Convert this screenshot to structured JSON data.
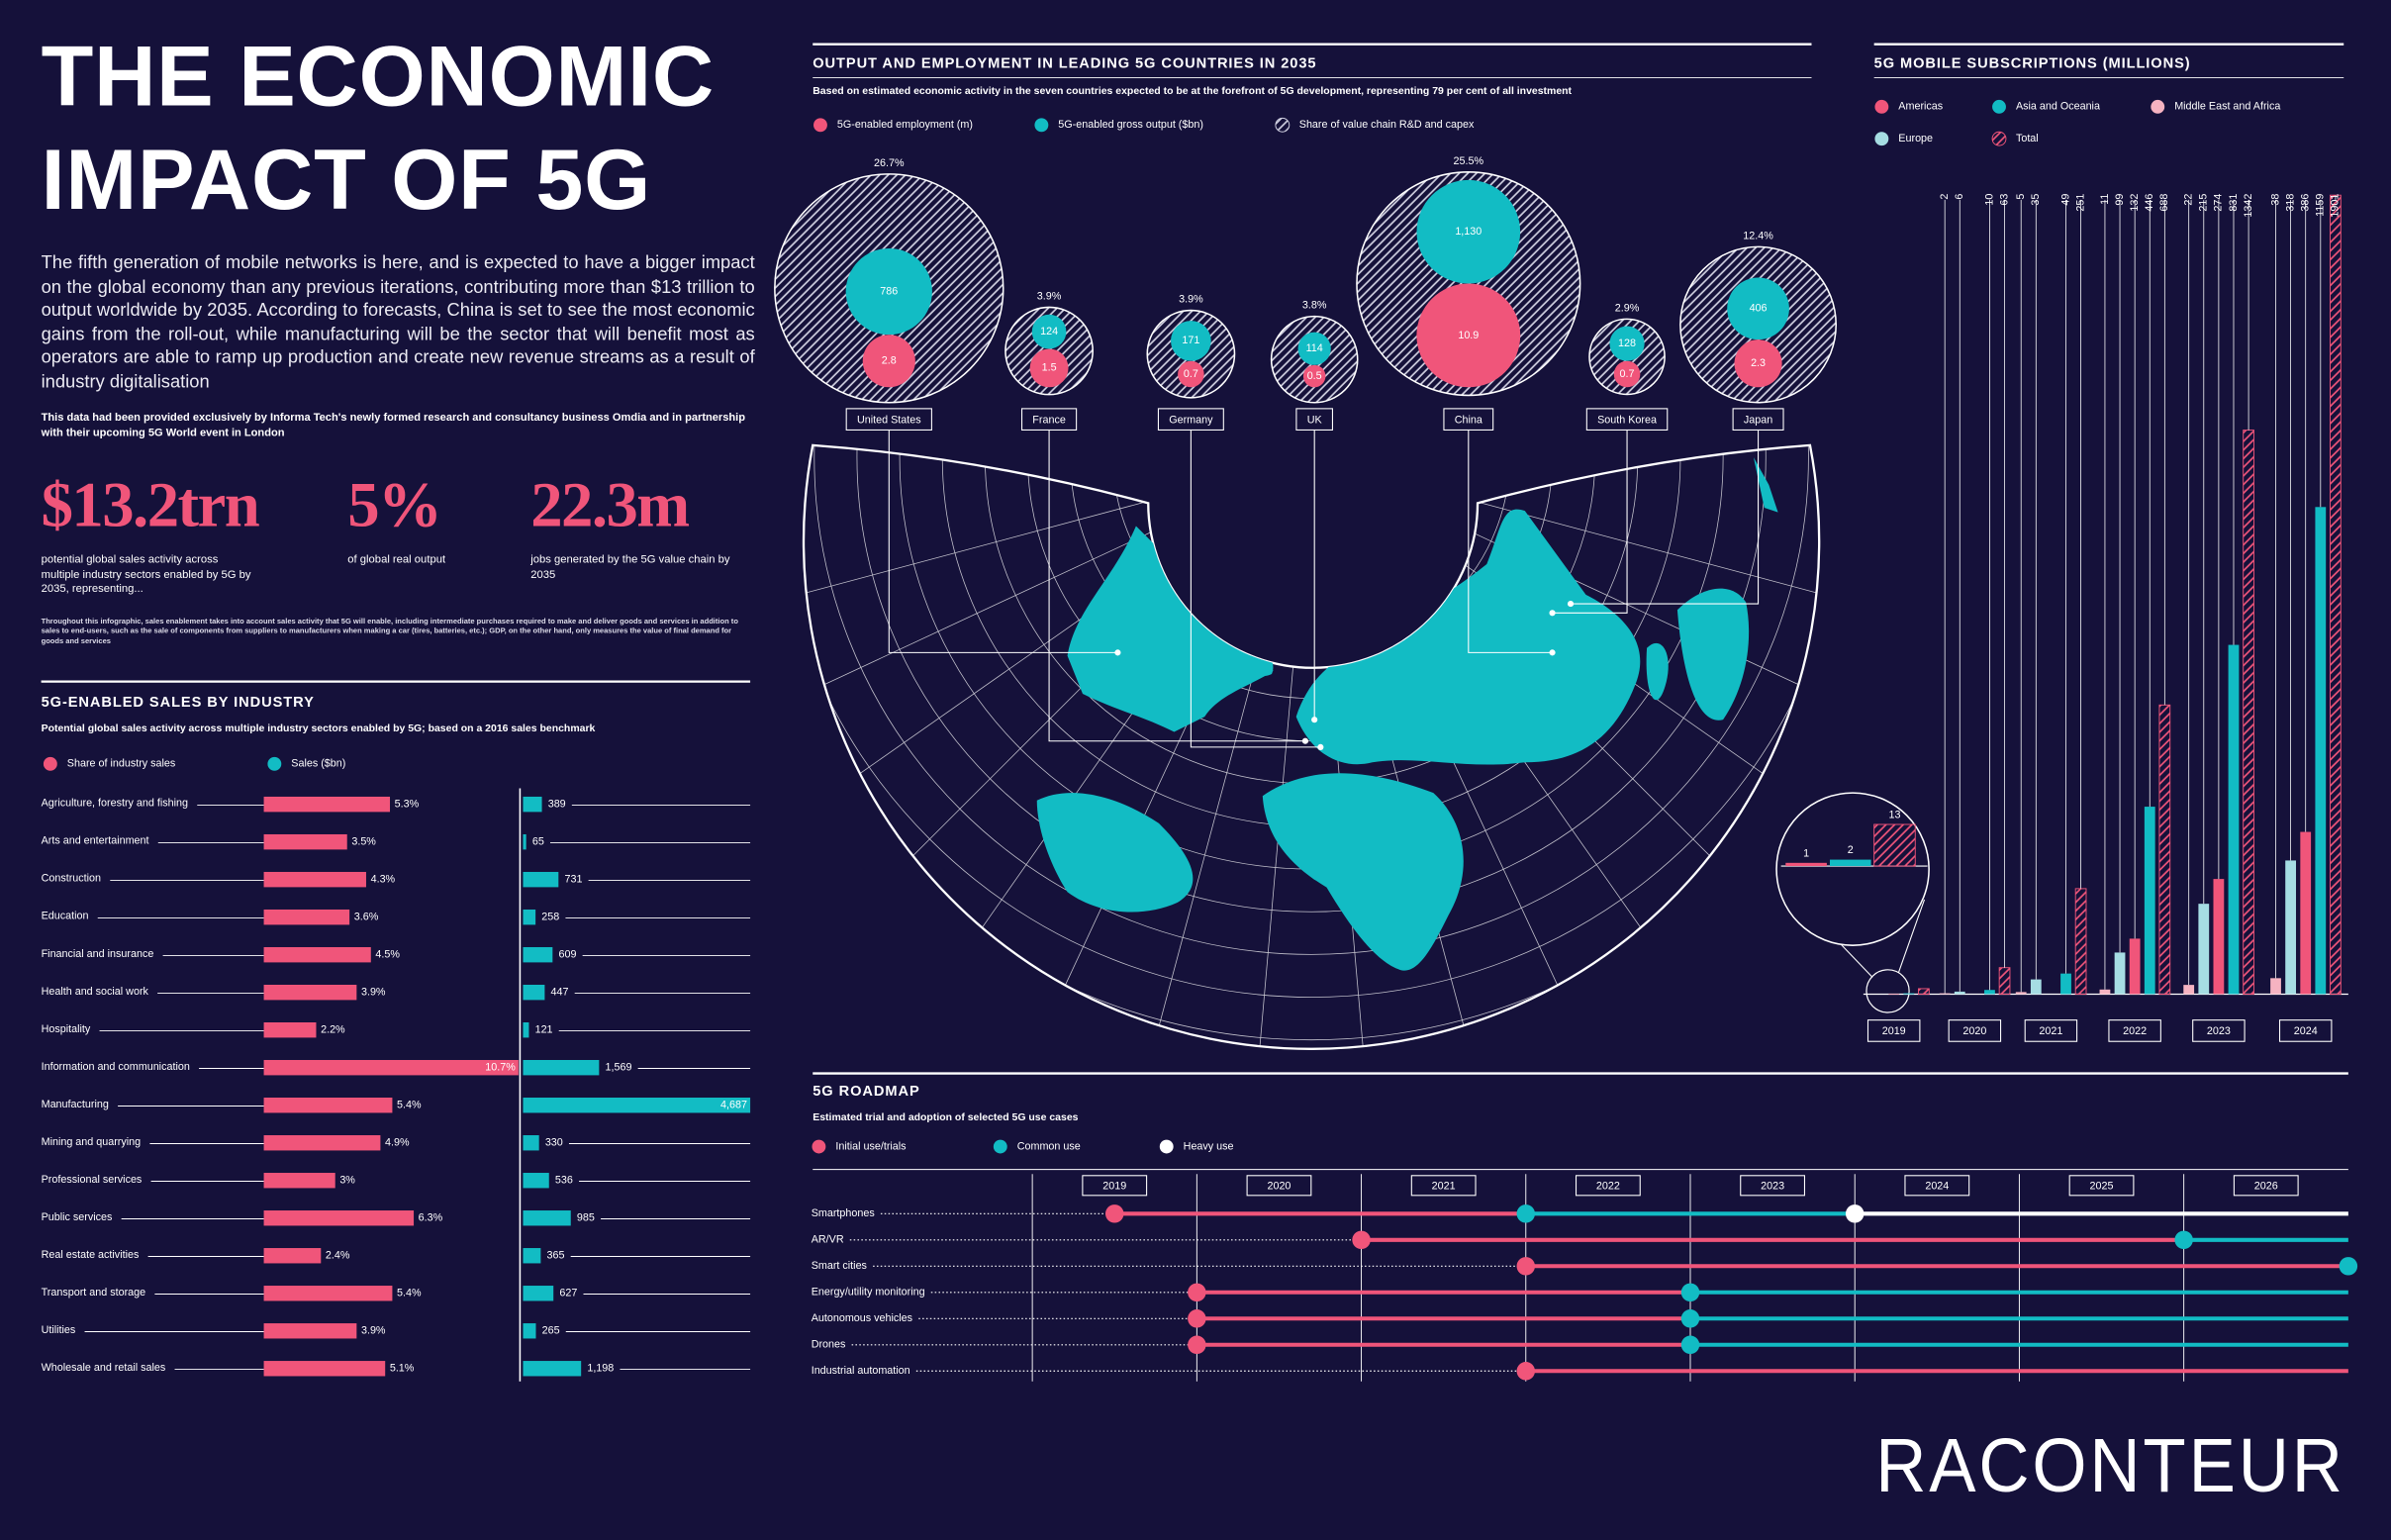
{
  "header": {
    "title_lines": [
      "THE ECONOMIC",
      "IMPACT OF 5G"
    ],
    "intro": "The fifth generation of mobile networks is here, and is expected to have a bigger impact on the global economy than any previous iterations, contributing more than $13 trillion to output worldwide by 2035. According to forecasts, China is set to see the most economic gains from the roll-out, while manufacturing will be the sector that will benefit most as operators are able to ramp up production and create new revenue streams as a result of industry digitalisation",
    "source": "This data had been provided exclusively by Informa Tech's newly formed research and consultancy business Omdia and in partnership with their upcoming 5G World event in London",
    "stats": [
      {
        "figure": "$13.2trn",
        "text": "potential global sales activity across multiple industry sectors enabled by 5G by 2035, representing..."
      },
      {
        "figure": "5%",
        "text": "of global real output"
      },
      {
        "figure": "22.3m",
        "text": "jobs generated by the 5G value chain by 2035"
      }
    ],
    "footnote": "Throughout this infographic, sales enablement takes into account sales activity that 5G will enable, including intermediate purchases required to make and deliver goods and services in addition to sales to end-users, such as the sale of components from suppliers to manufacturers when making a car (tires, batteries, etc.); GDP, on the other hand, only measures the value of final demand for goods and services"
  },
  "chart_data": [
    {
      "type": "bar",
      "orientation": "horizontal",
      "title": "5G-ENABLED SALES BY INDUSTRY",
      "subtitle": "Potential global sales activity across multiple industry sectors enabled by 5G; based on a 2016 sales benchmark",
      "categories": [
        "Agriculture, forestry and fishing",
        "Arts and entertainment",
        "Construction",
        "Education",
        "Financial and insurance",
        "Health and social work",
        "Hospitality",
        "Information and communication",
        "Manufacturing",
        "Mining and quarrying",
        "Professional services",
        "Public services",
        "Real estate activities",
        "Transport and storage",
        "Utilities",
        "Wholesale and retail sales"
      ],
      "series": [
        {
          "name": "Share of industry sales",
          "color": "#f0557a",
          "values": [
            5.3,
            3.5,
            4.3,
            3.6,
            4.5,
            3.9,
            2.2,
            10.7,
            5.4,
            4.9,
            3,
            6.3,
            2.4,
            5.4,
            3.9,
            5.1
          ],
          "value_labels": [
            "5.3%",
            "3.5%",
            "4.3%",
            "3.6%",
            "4.5%",
            "3.9%",
            "2.2%",
            "10.7%",
            "5.4%",
            "4.9%",
            "3%",
            "6.3%",
            "2.4%",
            "5.4%",
            "3.9%",
            "5.1%"
          ]
        },
        {
          "name": "Sales ($bn)",
          "color": "#12bcc4",
          "values": [
            389,
            65,
            731,
            258,
            609,
            447,
            121,
            1569,
            4687,
            330,
            536,
            985,
            365,
            627,
            265,
            1198
          ],
          "value_labels": [
            "389",
            "65",
            "731",
            "258",
            "609",
            "447",
            "121",
            "1,569",
            "4,687",
            "330",
            "536",
            "985",
            "365",
            "627",
            "265",
            "1,198"
          ]
        }
      ]
    },
    {
      "type": "bubble",
      "title": "OUTPUT AND EMPLOYMENT IN LEADING 5G COUNTRIES IN 2035",
      "subtitle": "Based on estimated economic activity in the seven countries expected to be at the forefront of 5G development, representing 79 per cent of all investment",
      "categories": [
        "United States",
        "France",
        "Germany",
        "UK",
        "China",
        "South Korea",
        "Japan"
      ],
      "series": [
        {
          "name": "5G-enabled employment (m)",
          "color": "#f0557a",
          "values": [
            2.8,
            1.5,
            0.7,
            0.5,
            10.9,
            0.7,
            2.3
          ]
        },
        {
          "name": "5G-enabled gross output ($bn)",
          "color": "#12bcc4",
          "values": [
            786,
            124,
            171,
            114,
            1130,
            128,
            406
          ],
          "value_labels": [
            "786",
            "124",
            "171",
            "114",
            "1,130",
            "128",
            "406"
          ]
        },
        {
          "name": "Share of value chain R&D and capex",
          "color": "#cfcfe0",
          "pattern": "hatch",
          "values": [
            26.7,
            3.9,
            3.9,
            3.8,
            25.5,
            2.9,
            12.4
          ],
          "value_labels": [
            "26.7%",
            "3.9%",
            "3.9%",
            "3.8%",
            "25.5%",
            "2.9%",
            "12.4%"
          ]
        }
      ]
    },
    {
      "type": "column",
      "title": "5G MOBILE SUBSCRIPTIONS (MILLIONS)",
      "categories": [
        "2019",
        "2020",
        "2021",
        "2022",
        "2023",
        "2024"
      ],
      "series": [
        {
          "name": "Americas",
          "color": "#f0557a",
          "values": [
            1,
            null,
            null,
            132,
            274,
            386
          ]
        },
        {
          "name": "Asia and Oceania",
          "color": "#12bcc4",
          "values": [
            2,
            10,
            49,
            446,
            831,
            1159
          ]
        },
        {
          "name": "Middle East and Africa",
          "color": "#f6b3c1",
          "values": [
            null,
            2,
            5,
            11,
            22,
            38
          ]
        },
        {
          "name": "Europe",
          "color": "#a6dde3",
          "values": [
            null,
            6,
            35,
            99,
            215,
            318
          ]
        },
        {
          "name": "Total",
          "color": "#f0557a",
          "pattern": "hatch",
          "values": [
            13,
            63,
            251,
            688,
            1342,
            1901
          ]
        }
      ]
    },
    {
      "type": "timeline",
      "title": "5G ROADMAP",
      "subtitle": "Estimated trial and adoption of selected 5G use cases",
      "categories": [
        "Smartphones",
        "AR/VR",
        "Smart cities",
        "Energy/utility monitoring",
        "Autonomous vehicles",
        "Drones",
        "Industrial automation"
      ],
      "series": [
        {
          "name": "Initial use/trials",
          "color": "#f0557a",
          "values": [
            2019.5,
            2021,
            2022,
            2020,
            2020,
            2020,
            2022
          ]
        },
        {
          "name": "Common use",
          "color": "#12bcc4",
          "values": [
            2022,
            2026,
            2027,
            2023,
            2023,
            2023,
            null
          ]
        },
        {
          "name": "Heavy use",
          "color": "#ffffff",
          "values": [
            2024,
            null,
            null,
            null,
            null,
            null,
            null
          ]
        }
      ],
      "xlim": [
        2019,
        2027
      ],
      "xticks": [
        2019,
        2020,
        2021,
        2022,
        2023,
        2024,
        2025,
        2026
      ]
    }
  ],
  "brand": "RACONTEUR"
}
